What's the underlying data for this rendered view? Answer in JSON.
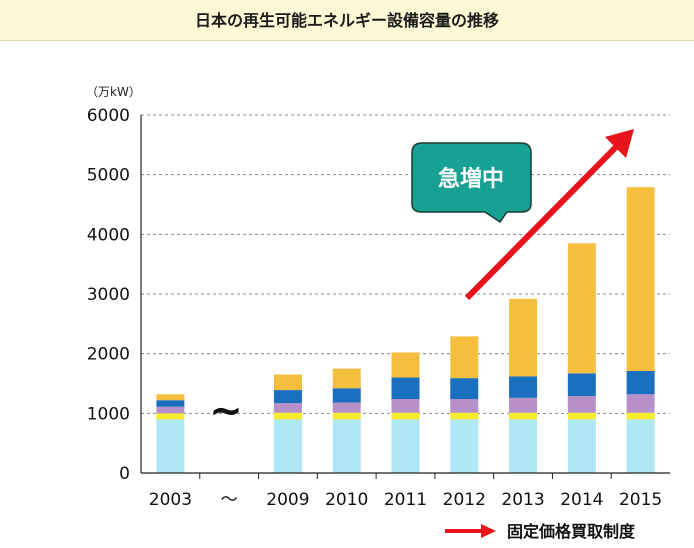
{
  "title": "日本の再生可能エネルギー設備容量の推移",
  "callout": "急増中",
  "legend_label": "固定価格買取制度",
  "colors": {
    "title_bg": "#fdf8d6",
    "arrow": "#e8131b",
    "callout": "#17a192",
    "series": [
      "#aee7f5",
      "#f5ec2a",
      "#b890c9",
      "#1a6fbf",
      "#f6be3e"
    ]
  },
  "chart_data": {
    "type": "bar",
    "stacked": true,
    "ylabel": "（万kW）",
    "ylim": [
      0,
      6000
    ],
    "y_ticks": [
      "0",
      "1000",
      "2000",
      "3000",
      "4000",
      "5000",
      "6000"
    ],
    "categories": [
      "2003",
      "～",
      "2009",
      "2010",
      "2011",
      "2012",
      "2013",
      "2014",
      "2015"
    ],
    "grid": true,
    "series": [
      {
        "values": [
          900,
          null,
          900,
          900,
          900,
          900,
          900,
          900,
          900
        ]
      },
      {
        "values": [
          100,
          null,
          110,
          110,
          110,
          110,
          110,
          110,
          110
        ]
      },
      {
        "values": [
          110,
          null,
          160,
          170,
          230,
          230,
          250,
          280,
          310
        ]
      },
      {
        "values": [
          110,
          null,
          220,
          240,
          360,
          350,
          360,
          380,
          390
        ]
      },
      {
        "values": [
          100,
          null,
          260,
          330,
          420,
          700,
          1300,
          2180,
          3080
        ]
      }
    ]
  }
}
